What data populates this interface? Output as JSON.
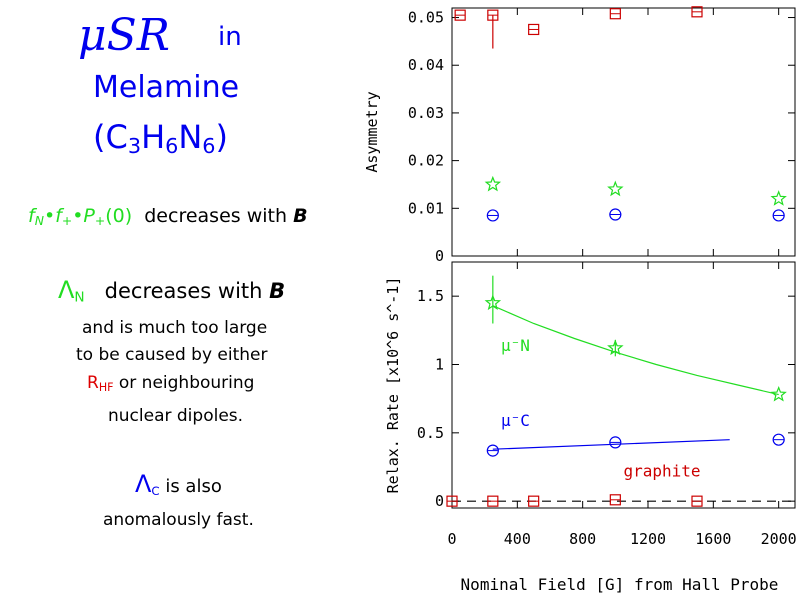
{
  "colors": {
    "blue": "#0000ee",
    "green": "#22dd22",
    "red": "#cc0000",
    "black": "#000000"
  },
  "slide": {
    "title_musr": "μSR",
    "title_in": "in",
    "title_material": "Melamine",
    "formula": {
      "open": "(C",
      "s1": "3",
      "h": "H",
      "s2": "6",
      "n": "N",
      "s3": "6",
      "close": ")"
    },
    "line1": {
      "f": "f",
      "fsub": "N",
      "dot1": "•",
      "f2": "f",
      "f2sub": "+",
      "dot2": "•",
      "p": "P",
      "psub": "+",
      "arg": "(0)",
      "text": "decreases with",
      "b": "B"
    },
    "line2": {
      "sym": "Λ",
      "sub": "N",
      "text": "decreases with",
      "b": "B"
    },
    "para1": {
      "l1": "and is much too large",
      "l2": "to be caused by either",
      "r": "R",
      "rsub": "HF",
      "l3rest": " or neighbouring",
      "l4": "nuclear dipoles."
    },
    "line3": {
      "sym": "Λ",
      "sub": "C",
      "text": "is also",
      "l2": "anomalously fast."
    }
  },
  "chart_data": [
    {
      "type": "scatter",
      "title": "",
      "xlabel": "",
      "ylabel": "Asymmetry",
      "xlim": [
        0,
        2100
      ],
      "ylim": [
        0,
        0.052
      ],
      "yticks": [
        {
          "v": 0,
          "label": "0"
        },
        {
          "v": 0.01,
          "label": "0.01"
        },
        {
          "v": 0.02,
          "label": "0.02"
        },
        {
          "v": 0.03,
          "label": "0.03"
        },
        {
          "v": 0.04,
          "label": "0.04"
        },
        {
          "v": 0.05,
          "label": "0.05"
        }
      ],
      "series": [
        {
          "marker": "square",
          "color": "#cc0000",
          "points": [
            {
              "x": 50,
              "y": 0.0505
            },
            {
              "x": 250,
              "y": 0.0505,
              "err_lo": 0.007,
              "err_hi": 0.0
            },
            {
              "x": 500,
              "y": 0.0475
            },
            {
              "x": 1000,
              "y": 0.0508
            },
            {
              "x": 1500,
              "y": 0.0512
            }
          ]
        },
        {
          "marker": "star",
          "color": "#22dd22",
          "points": [
            {
              "x": 250,
              "y": 0.015
            },
            {
              "x": 1000,
              "y": 0.014
            },
            {
              "x": 2000,
              "y": 0.012
            }
          ]
        },
        {
          "marker": "circle",
          "color": "#0000ee",
          "points": [
            {
              "x": 250,
              "y": 0.0085
            },
            {
              "x": 1000,
              "y": 0.0087
            },
            {
              "x": 2000,
              "y": 0.0085
            }
          ]
        }
      ]
    },
    {
      "type": "scatter",
      "title": "",
      "xlabel": "Nominal Field [G] from Hall Probe",
      "ylabel": "Relax. Rate [x10^6 s^-1]",
      "xlim": [
        0,
        2100
      ],
      "ylim": [
        -0.05,
        1.75
      ],
      "xticks": [
        {
          "v": 0,
          "label": "0"
        },
        {
          "v": 400,
          "label": "400"
        },
        {
          "v": 800,
          "label": "800"
        },
        {
          "v": 1200,
          "label": "1200"
        },
        {
          "v": 1600,
          "label": "1600"
        },
        {
          "v": 2000,
          "label": "2000"
        }
      ],
      "yticks": [
        {
          "v": 0,
          "label": "0"
        },
        {
          "v": 0.5,
          "label": "0.5"
        },
        {
          "v": 1.0,
          "label": "1"
        },
        {
          "v": 1.5,
          "label": "1.5"
        }
      ],
      "annotations": [
        {
          "text": "μ⁻N",
          "x": 300,
          "y": 1.1,
          "color": "#22dd22"
        },
        {
          "text": "μ⁻C",
          "x": 300,
          "y": 0.55,
          "color": "#0000ee"
        },
        {
          "text": "graphite",
          "x": 1050,
          "y": 0.18,
          "color": "#cc0000"
        }
      ],
      "series": [
        {
          "name": "μ⁻N",
          "marker": "star",
          "color": "#22dd22",
          "points": [
            {
              "x": 250,
              "y": 1.45,
              "err_lo": 0.15,
              "err_hi": 0.2
            },
            {
              "x": 1000,
              "y": 1.12,
              "err_lo": 0.06,
              "err_hi": 0.06
            },
            {
              "x": 2000,
              "y": 0.78
            }
          ]
        },
        {
          "name": "μ⁻C",
          "marker": "circle",
          "color": "#0000ee",
          "points": [
            {
              "x": 250,
              "y": 0.37
            },
            {
              "x": 1000,
              "y": 0.43
            },
            {
              "x": 2000,
              "y": 0.45
            }
          ]
        },
        {
          "name": "graphite",
          "marker": "square",
          "color": "#cc0000",
          "points": [
            {
              "x": 0,
              "y": 0.0
            },
            {
              "x": 250,
              "y": 0.0
            },
            {
              "x": 500,
              "y": 0.0
            },
            {
              "x": 1000,
              "y": 0.01
            },
            {
              "x": 1500,
              "y": 0.0
            }
          ]
        }
      ],
      "fits": [
        {
          "color": "#22dd22",
          "style": "solid",
          "x": [
            250,
            500,
            750,
            1000,
            1250,
            1500,
            1750,
            2000
          ],
          "y": [
            1.43,
            1.3,
            1.19,
            1.09,
            1.0,
            0.92,
            0.85,
            0.78
          ]
        },
        {
          "color": "#0000ee",
          "style": "solid",
          "x": [
            250,
            1700
          ],
          "y": [
            0.38,
            0.45
          ]
        },
        {
          "color": "#000000",
          "style": "dashed",
          "x": [
            0,
            2100
          ],
          "y": [
            0,
            0
          ]
        }
      ]
    }
  ]
}
